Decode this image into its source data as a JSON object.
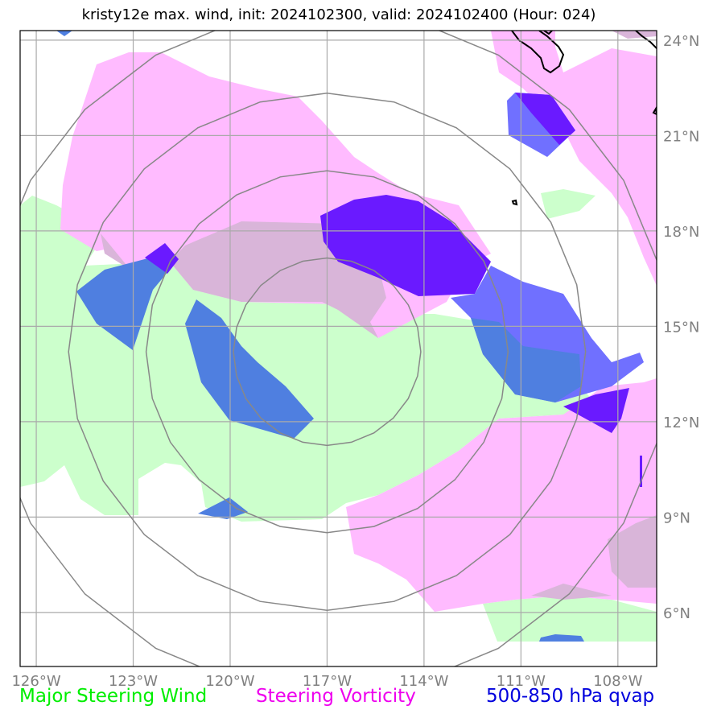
{
  "title": "kristy12e max. wind, init: 2024102300, valid: 2024102400 (Hour: 024)",
  "map": {
    "lon_range": [
      -126.5,
      -106.8
    ],
    "lat_range": [
      4.3,
      24.3
    ],
    "lon_ticks": [
      {
        "value": -126,
        "label": "126°W"
      },
      {
        "value": -123,
        "label": "123°W"
      },
      {
        "value": -120,
        "label": "120°W"
      },
      {
        "value": -117,
        "label": "117°W"
      },
      {
        "value": -114,
        "label": "114°W"
      },
      {
        "value": -111,
        "label": "111°W"
      },
      {
        "value": -108,
        "label": "108°W"
      }
    ],
    "lat_ticks": [
      {
        "value": 24,
        "label": "24°N"
      },
      {
        "value": 21,
        "label": "21°N"
      },
      {
        "value": 18,
        "label": "18°N"
      },
      {
        "value": 15,
        "label": "15°N"
      },
      {
        "value": 12,
        "label": "12°N"
      },
      {
        "value": 9,
        "label": "9°N"
      },
      {
        "value": 6,
        "label": "6°N"
      }
    ],
    "grid": true,
    "storm_center": {
      "lon": -117.0,
      "lat": 14.2
    },
    "range_rings_deg": [
      2.9,
      5.6,
      8.0,
      10.6
    ],
    "colors": {
      "wind": "#ccffcc",
      "vorticity": "#ff99ff",
      "vorticity_overlap": "#d8b4d8",
      "qvap_light": "#7070ff",
      "qvap_dark": "#6a1aff",
      "qvap_mixed": "#4f7fe0",
      "grid": "#aaaaaa",
      "rings": "#888888",
      "coast": "#000000"
    }
  },
  "legend": {
    "wind": {
      "label": "Major Steering Wind",
      "color": "#00ee00"
    },
    "vorticity": {
      "label": "Steering Vorticity",
      "color": "#ee00ee"
    },
    "qvap": {
      "label": "500-850 hPa qvap",
      "color": "#0000dd"
    }
  }
}
